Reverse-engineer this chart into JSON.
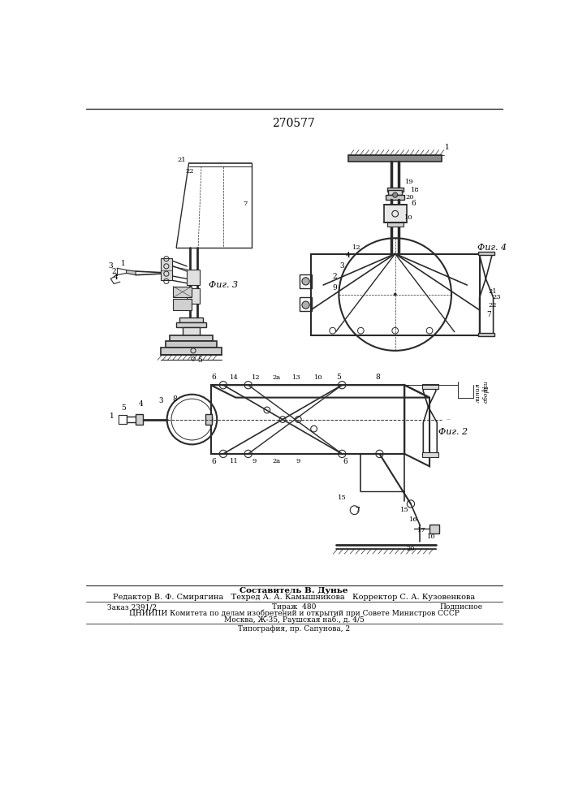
{
  "patent_number": "270577",
  "bg_color": "#ffffff",
  "draw_color": "#2a2a2a",
  "footer_lines": [
    "Составитель В. Дунье",
    "Редактор В. Ф. Смирягина   Техред А. А. Камышникова   Корректор С. А. Кузовенкова",
    "Заказ 2391/2",
    "Тираж  480",
    "Подписное",
    "ЦНИИПИ Комитета по делам изобретений и открытий при Совете Министров СССР",
    "Москва, Ж-35, Раушская наб., д. 4/5",
    "Типография, пр. Сапунова, 2"
  ]
}
